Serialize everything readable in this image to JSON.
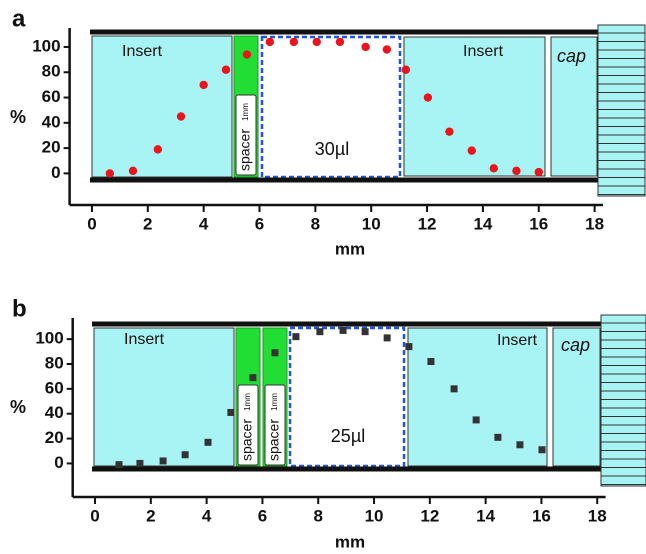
{
  "chart_data": [
    {
      "type": "scatter",
      "panel_label": "a",
      "xlabel": "mm",
      "ylabel": "%",
      "marker": "circle",
      "color": "#e8161c",
      "x": [
        0.64,
        1.47,
        2.36,
        3.19,
        4.0,
        4.8,
        5.55,
        6.37,
        7.23,
        8.05,
        8.88,
        9.8,
        10.56,
        11.24,
        12.03,
        12.8,
        13.6,
        14.39,
        15.2,
        16.0
      ],
      "values": [
        0,
        2,
        19,
        45,
        70,
        82,
        94,
        104,
        104,
        104,
        104,
        100,
        98,
        82,
        60,
        33,
        18,
        4,
        2,
        1
      ],
      "xlim": [
        -0.8,
        18.3
      ],
      "ylim": [
        -25,
        115
      ],
      "xticks": [
        0,
        2,
        4,
        6,
        8,
        10,
        12,
        14,
        16,
        18
      ],
      "yticks": [
        0,
        20,
        40,
        60,
        80,
        100
      ],
      "annotations": [
        "Insert",
        "spacer",
        "1mm",
        "30µl",
        "Insert",
        "cap"
      ]
    },
    {
      "type": "scatter",
      "panel_label": "b",
      "xlabel": "mm",
      "ylabel": "%",
      "marker": "square",
      "color": "#333333",
      "x": [
        0.86,
        1.61,
        2.44,
        3.23,
        4.05,
        4.87,
        5.66,
        6.45,
        7.2,
        8.06,
        8.89,
        9.68,
        10.47,
        11.25,
        12.04,
        12.87,
        13.66,
        14.44,
        15.23,
        16.02
      ],
      "values": [
        -1,
        0,
        2,
        7,
        17,
        41,
        69,
        89,
        102,
        106,
        107,
        106,
        101,
        94,
        82,
        60,
        35,
        21,
        15,
        11
      ],
      "xlim": [
        -0.8,
        18.3
      ],
      "ylim": [
        -27,
        117
      ],
      "xticks": [
        0,
        2,
        4,
        6,
        8,
        10,
        12,
        14,
        16,
        18
      ],
      "yticks": [
        0,
        20,
        40,
        60,
        80,
        100
      ],
      "annotations": [
        "Insert",
        "spacer",
        "1mm",
        "spacer",
        "1mm",
        "25µl",
        "Insert",
        "cap"
      ]
    }
  ]
}
